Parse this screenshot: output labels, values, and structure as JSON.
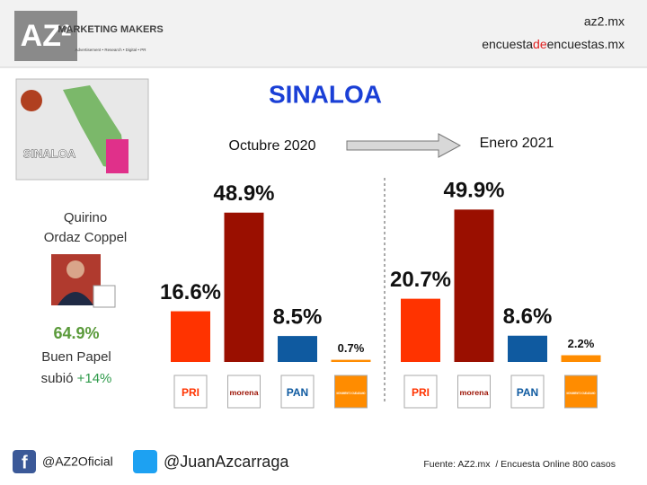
{
  "header": {
    "logo": "AZ²",
    "logo_subtitle": "MARKETING MAKERS",
    "logo_tagline": "Advertisement • Research • Digital • PR",
    "site": "az2.mx",
    "site2": [
      "encuesta",
      "de",
      "encuestas.mx"
    ]
  },
  "title": "SINALOA",
  "candidate": {
    "name": [
      "Quirino",
      "Ordaz Coppel"
    ],
    "approval": "64.9%",
    "rating": "Buen Papel",
    "change": [
      "subió",
      "+14%"
    ]
  },
  "chart_data": [
    {
      "type": "bar",
      "title": "Octubre 2020",
      "categories": [
        "PRI",
        "morena",
        "PAN",
        "MOVIMIENTO CIUDADANO"
      ],
      "values": [
        16.6,
        48.9,
        8.5,
        0.7
      ],
      "value_labels": [
        "16.6%",
        "48.9%",
        "8.5%",
        "0.7%"
      ],
      "colors": [
        "#ff3300",
        "#9a0f00",
        "#0f5aa0",
        "#ff8c00"
      ]
    },
    {
      "type": "bar",
      "title": "Enero 2021",
      "categories": [
        "PRI",
        "morena",
        "PAN",
        "MOVIMIENTO CIUDADANO"
      ],
      "values": [
        20.7,
        49.9,
        8.6,
        2.2
      ],
      "value_labels": [
        "20.7%",
        "49.9%",
        "8.6%",
        "2.2%"
      ],
      "colors": [
        "#ff3300",
        "#9a0f00",
        "#0f5aa0",
        "#ff8c00"
      ]
    }
  ],
  "footer": {
    "facebook": "@AZ2Oficial",
    "twitter": "@JuanAzcarraga",
    "source": "Fuente: AZ2.mx  / Encuesta Online 800 casos"
  }
}
